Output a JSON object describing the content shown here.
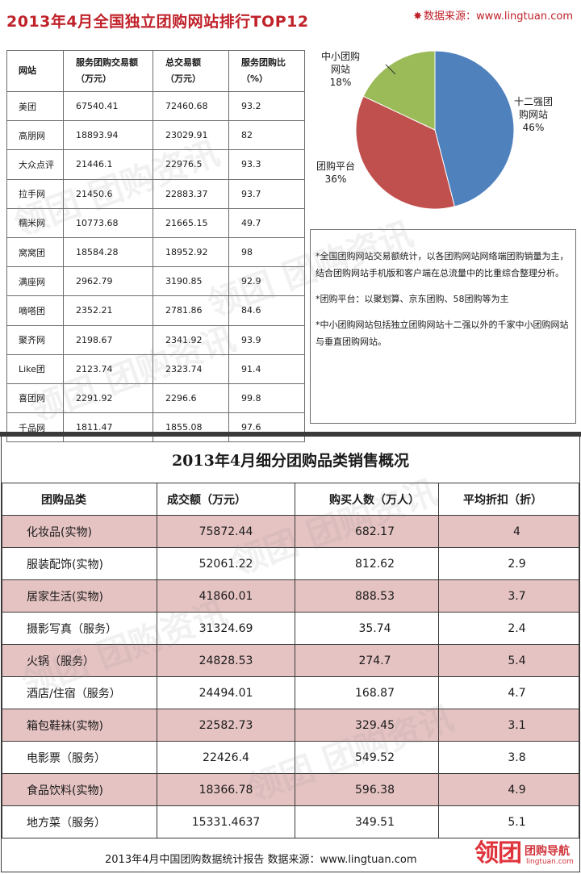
{
  "header": {
    "title": "2013年4月全国独立团购网站排行TOP12",
    "source": "数据来源：www.lingtuan.com"
  },
  "top_table": {
    "columns": [
      {
        "line1": "网站",
        "line2": ""
      },
      {
        "line1": "服务团购交易额",
        "line2": "（万元）"
      },
      {
        "line1": "总交易额",
        "line2": "（万元）"
      },
      {
        "line1": "服务团购比",
        "line2": "（%）"
      }
    ],
    "rows": [
      [
        "美团",
        "67540.41",
        "72460.68",
        "93.2"
      ],
      [
        "高朋网",
        "18893.94",
        "23029.91",
        "82"
      ],
      [
        "大众点评",
        "21446.1",
        "22976.5",
        "93.3"
      ],
      [
        "拉手网",
        "21450.6",
        "22883.37",
        "93.7"
      ],
      [
        "糯米网",
        "10773.68",
        "21665.15",
        "49.7"
      ],
      [
        "窝窝团",
        "18584.28",
        "18952.92",
        "98"
      ],
      [
        "满座网",
        "2962.79",
        "3190.85",
        "92.9"
      ],
      [
        "嘀嗒团",
        "2352.21",
        "2781.86",
        "84.6"
      ],
      [
        "聚齐网",
        "2198.67",
        "2341.92",
        "93.9"
      ],
      [
        "Like团",
        "2123.74",
        "2323.74",
        "91.4"
      ],
      [
        "喜团网",
        "2291.92",
        "2296.6",
        "99.8"
      ],
      [
        "千品网",
        "1811.47",
        "1855.08",
        "97.6"
      ]
    ]
  },
  "chart_data": {
    "type": "pie",
    "slices": [
      {
        "name_line1": "十二强团",
        "name_line2": "购网站",
        "value": 46,
        "label": "46%",
        "color": "#4f81bd"
      },
      {
        "name_line1": "团购平台",
        "name_line2": "",
        "value": 36,
        "label": "36%",
        "color": "#c0504d"
      },
      {
        "name_line1": "中小团购",
        "name_line2": "网站",
        "value": 18,
        "label": "18%",
        "color": "#9bbb59"
      }
    ],
    "start_angle_deg": 0,
    "direction": "clockwise"
  },
  "notes": [
    "*全国团购网站交易额统计，以各团购网站网络端团购销量为主，结合团购网站手机版和客户端在总流量中的比重综合整理分析。",
    "*团购平台：以聚划算、京东团购、58团购等为主",
    "*中小团购网站包括独立团购网站十二强以外的千家中小团购网站与垂直团购网站。"
  ],
  "bottom": {
    "title": "2013年4月细分团购品类销售概况",
    "columns": [
      "团购品类",
      "成交额（万元）",
      "购买人数（万人）",
      "平均折扣（折）"
    ],
    "rows": [
      [
        "化妆品(实物)",
        "75872.44",
        "682.17",
        "4"
      ],
      [
        "服装配饰(实物)",
        "52061.22",
        "812.62",
        "2.9"
      ],
      [
        "居家生活(实物)",
        "41860.01",
        "888.53",
        "3.7"
      ],
      [
        "摄影写真（服务）",
        "31324.69",
        "35.74",
        "2.4"
      ],
      [
        "火锅（服务）",
        "24828.53",
        "274.7",
        "5.4"
      ],
      [
        "酒店/住宿（服务）",
        "24494.01",
        "168.87",
        "4.7"
      ],
      [
        "箱包鞋袜(实物)",
        "22582.73",
        "329.45",
        "3.1"
      ],
      [
        "电影票（服务）",
        "22426.4",
        "549.52",
        "3.8"
      ],
      [
        "食品饮料(实物)",
        "18366.78",
        "596.38",
        "4.9"
      ],
      [
        "地方菜（服务）",
        "15331.4637",
        "349.51",
        "5.1"
      ]
    ]
  },
  "footer": {
    "text": "2013年4月中国团购数据统计报告   数据来源：www.lingtuan.com"
  },
  "logo": {
    "main": "领团",
    "nav": "团购导航",
    "url": "lingtuan.com"
  },
  "watermark_text": "领团 团购资讯"
}
